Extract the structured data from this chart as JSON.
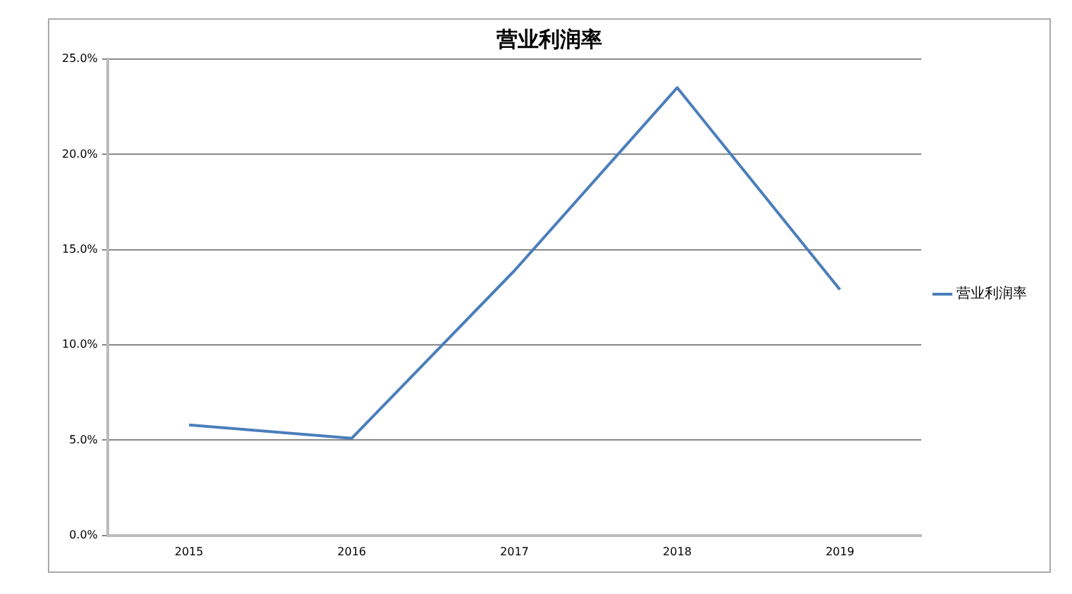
{
  "chart_data": {
    "type": "line",
    "title": "营业利润率",
    "categories": [
      "2015",
      "2016",
      "2017",
      "2018",
      "2019"
    ],
    "series": [
      {
        "name": "营业利润率",
        "color": "#4a7ebb",
        "values": [
          5.8,
          5.1,
          13.9,
          23.5,
          12.9
        ]
      }
    ],
    "ylim": [
      0,
      25
    ],
    "yticks": [
      {
        "value": 0,
        "label": "0.0%"
      },
      {
        "value": 5,
        "label": "5.0%"
      },
      {
        "value": 10,
        "label": "10.0%"
      },
      {
        "value": 15,
        "label": "15.0%"
      },
      {
        "value": 20,
        "label": "20.0%"
      },
      {
        "value": 25,
        "label": "25.0%"
      }
    ],
    "grid": "y",
    "legend": "right",
    "marker": "none"
  }
}
